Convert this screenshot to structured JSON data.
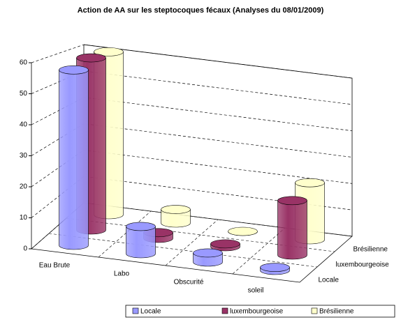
{
  "chart_data": {
    "type": "bar3d",
    "title": "Action de AA sur les steptocoques fécaux (Analyses du 08/01/2009)",
    "categories": [
      "Eau Brute",
      "Labo",
      "Obscurité",
      "soleil"
    ],
    "series": [
      {
        "name": "Locale",
        "color": "#9999ff",
        "values": [
          58,
          9,
          3,
          1
        ]
      },
      {
        "name": "luxembourgeoise",
        "color": "#993366",
        "values": [
          60,
          2,
          1,
          19
        ]
      },
      {
        "name": "Brésilienne",
        "color": "#ffffcc",
        "values": [
          60,
          5,
          0,
          21
        ]
      }
    ],
    "ylim": [
      0,
      60
    ],
    "yticks": [
      0,
      10,
      20,
      30,
      40,
      50,
      60
    ],
    "grid": true,
    "legend": "bottom"
  }
}
